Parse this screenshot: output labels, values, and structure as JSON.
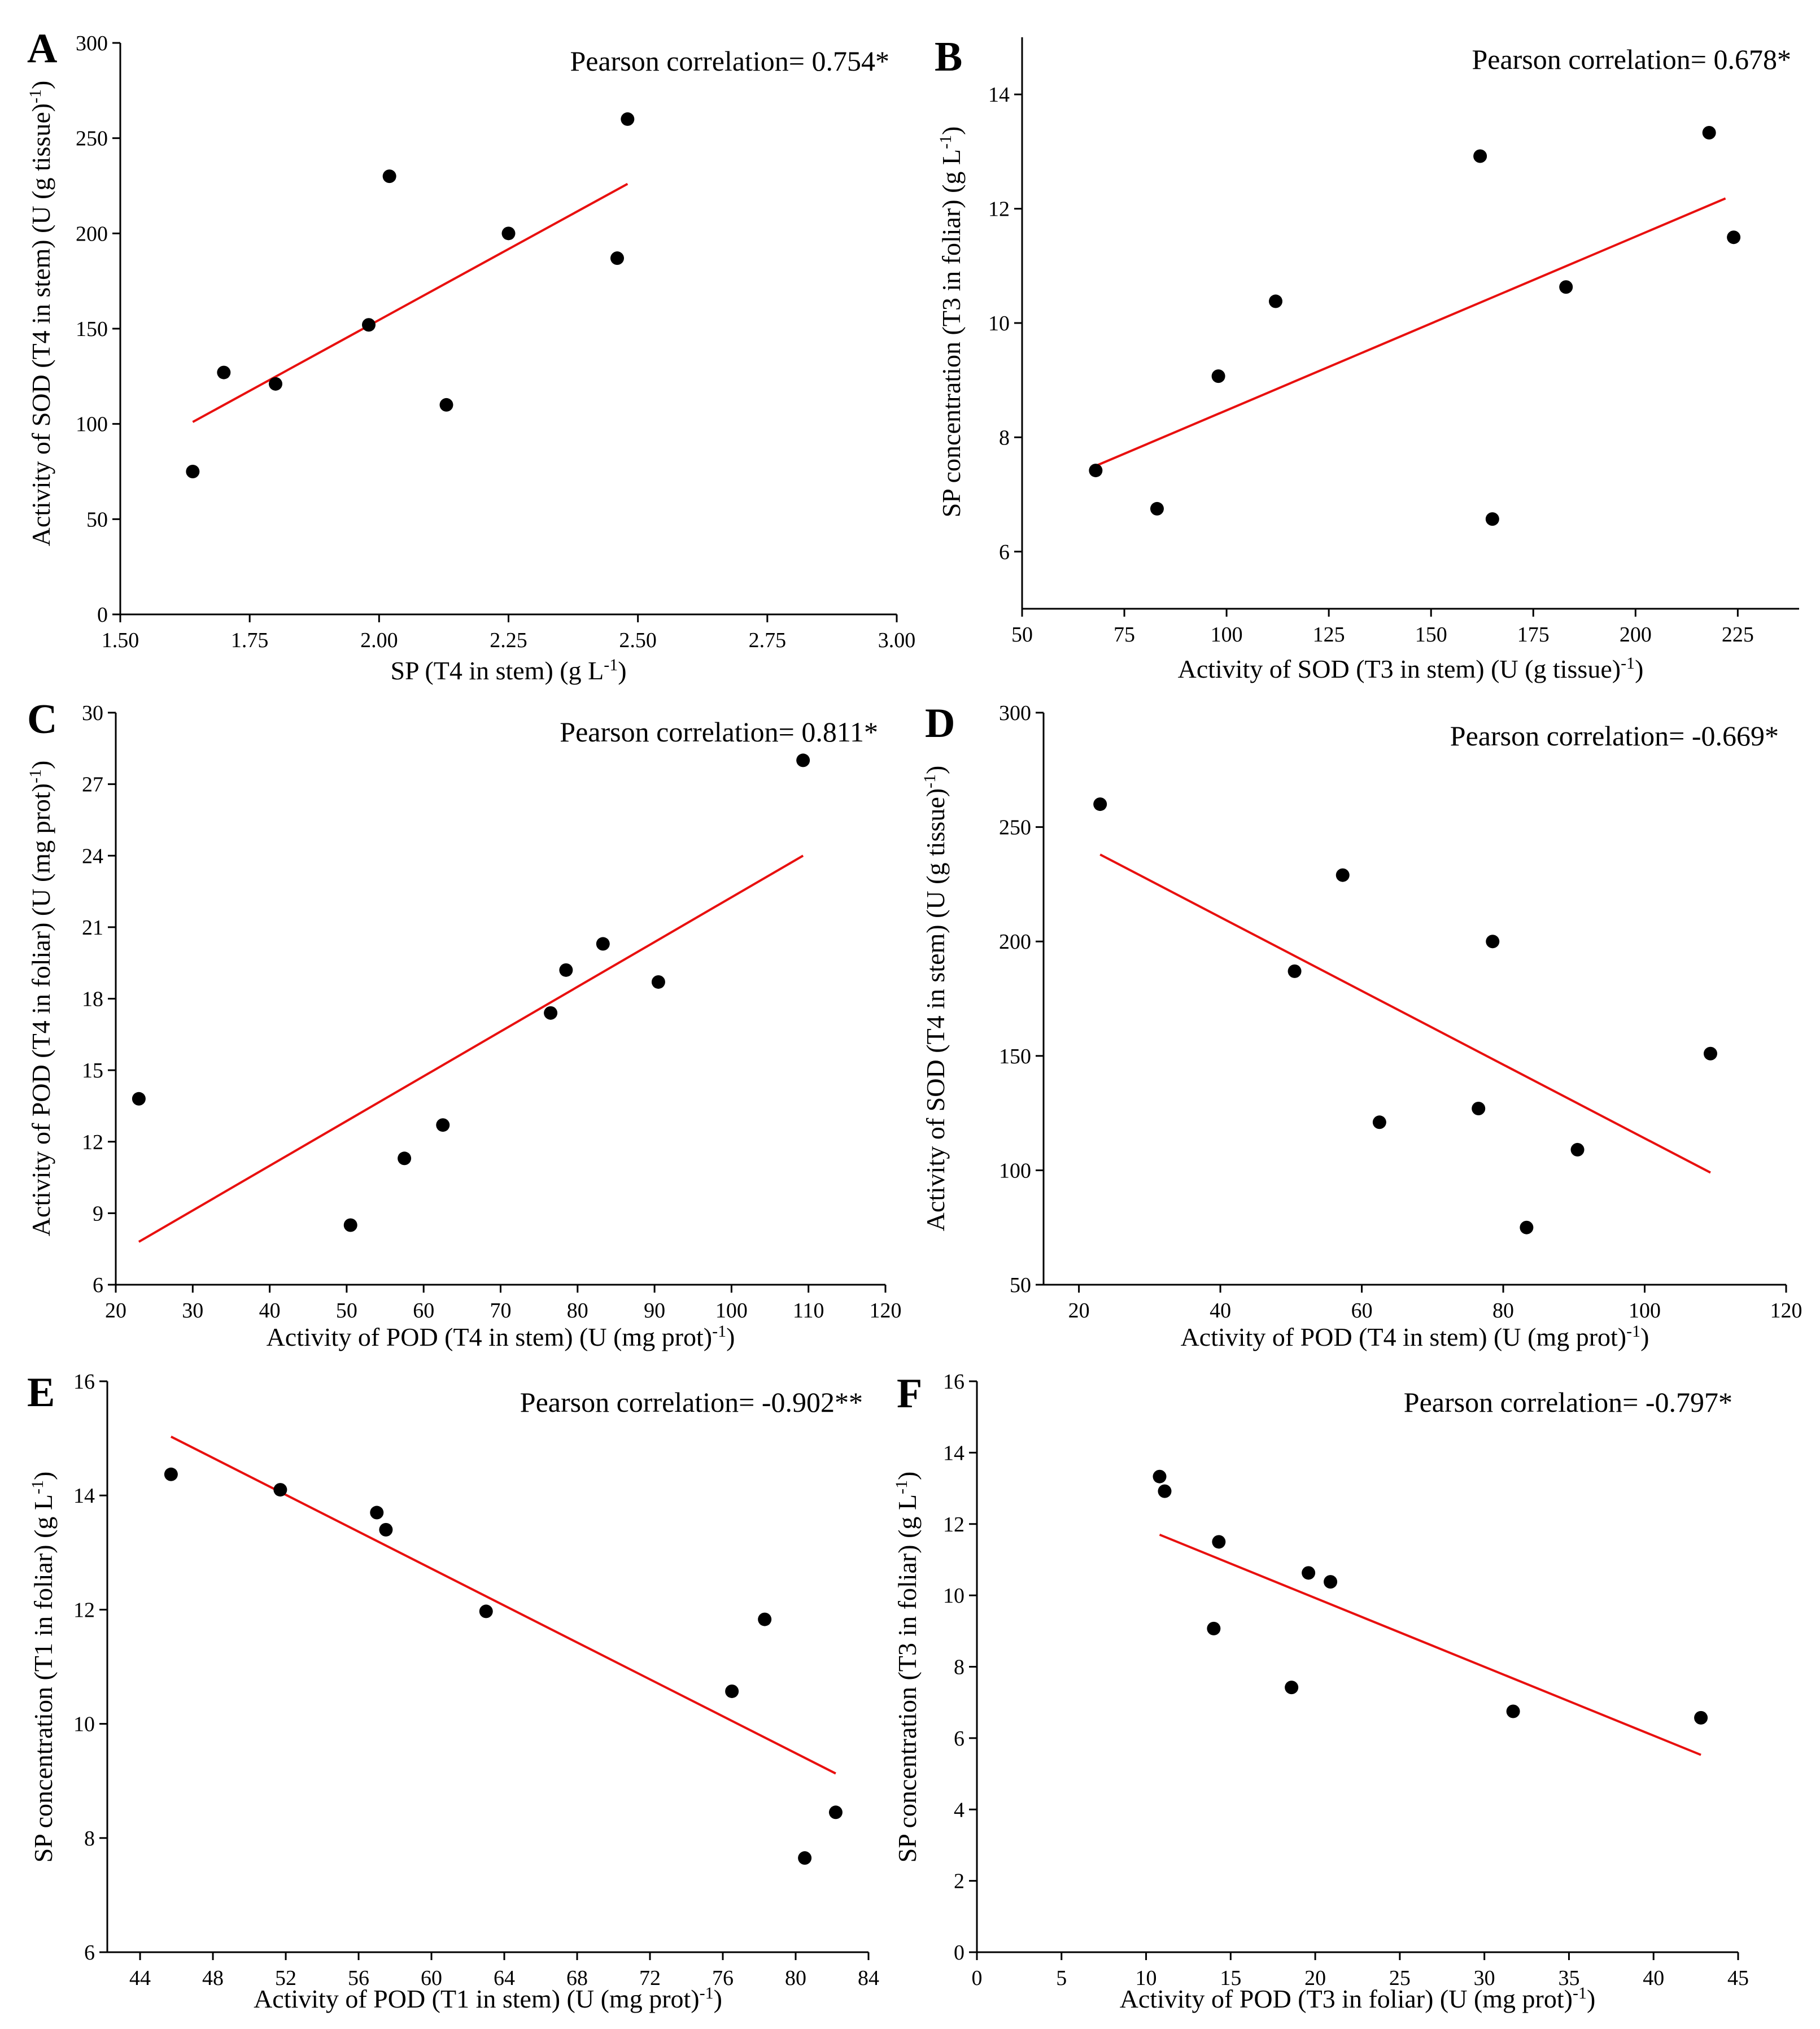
{
  "chart_data": [
    {
      "panel": "A",
      "type": "scatter",
      "annotation": "Pearson correlation= 0.754*",
      "xlabel": "SP (T4 in stem) (g L|-1|)",
      "ylabel": "Activity of SOD (T4 in stem) (U (g tissue)|-1|)",
      "xlim": [
        1.5,
        3.0
      ],
      "ylim": [
        0,
        300
      ],
      "xticks": [
        "1.50",
        "1.75",
        "2.00",
        "2.25",
        "2.50",
        "2.75",
        "3.00"
      ],
      "yticks": [
        "0",
        "50",
        "100",
        "150",
        "200",
        "250",
        "300"
      ],
      "points": [
        [
          1.64,
          75
        ],
        [
          1.7,
          127
        ],
        [
          1.8,
          121
        ],
        [
          1.98,
          152
        ],
        [
          2.02,
          230
        ],
        [
          2.13,
          110
        ],
        [
          2.25,
          200
        ],
        [
          2.46,
          187
        ],
        [
          2.48,
          260
        ]
      ],
      "fit": [
        [
          1.64,
          101
        ],
        [
          2.48,
          226
        ]
      ]
    },
    {
      "panel": "B",
      "type": "scatter",
      "annotation": "Pearson correlation= 0.678*",
      "xlabel": "Activity of SOD (T3 in stem) (U (g tissue)|-1|)",
      "ylabel": "SP concentration (T3 in foliar) (g L|-1|)",
      "xlim": [
        50,
        240
      ],
      "ylim": [
        5,
        15
      ],
      "xticks": [
        "50",
        "75",
        "100",
        "125",
        "150",
        "175",
        "200",
        "225"
      ],
      "yticks": [
        "6",
        "8",
        "10",
        "12",
        "14"
      ],
      "points": [
        [
          68,
          7.42
        ],
        [
          83,
          6.75
        ],
        [
          98,
          9.07
        ],
        [
          112,
          10.38
        ],
        [
          162,
          12.92
        ],
        [
          165,
          6.57
        ],
        [
          183,
          10.63
        ],
        [
          218,
          13.33
        ],
        [
          224,
          11.5
        ]
      ],
      "fit": [
        [
          68,
          7.5
        ],
        [
          222,
          12.18
        ]
      ]
    },
    {
      "panel": "C",
      "type": "scatter",
      "annotation": "Pearson correlation= 0.811*",
      "xlabel": "Activity of POD (T4 in stem) (U (mg prot)|-1|)",
      "ylabel": "Activity of POD (T4 in foliar) (U (mg prot)|-1|)",
      "xlim": [
        20,
        120
      ],
      "ylim": [
        6,
        30
      ],
      "xticks": [
        "20",
        "30",
        "40",
        "50",
        "60",
        "70",
        "80",
        "90",
        "100",
        "110",
        "120"
      ],
      "yticks": [
        "6",
        "9",
        "12",
        "15",
        "18",
        "21",
        "24",
        "27",
        "30"
      ],
      "points": [
        [
          23,
          13.8
        ],
        [
          50.5,
          8.5
        ],
        [
          57.5,
          11.3
        ],
        [
          62.5,
          12.7
        ],
        [
          76.5,
          17.4
        ],
        [
          78.5,
          19.2
        ],
        [
          83.3,
          20.3
        ],
        [
          90.5,
          18.7
        ],
        [
          109.3,
          28
        ]
      ],
      "fit": [
        [
          23,
          7.8
        ],
        [
          109.3,
          24
        ]
      ]
    },
    {
      "panel": "D",
      "type": "scatter",
      "annotation": "Pearson correlation= -0.669*",
      "xlabel": "Activity of POD (T4 in stem) (U (mg prot)|-1|)",
      "ylabel": "Activity of SOD (T4 in stem) (U (g tissue)|-1|)",
      "xlim": [
        15,
        120
      ],
      "ylim": [
        50,
        300
      ],
      "xticks": [
        "20",
        "40",
        "60",
        "80",
        "100",
        "120"
      ],
      "yticks": [
        "50",
        "100",
        "150",
        "200",
        "250",
        "300"
      ],
      "points": [
        [
          23,
          260
        ],
        [
          50.5,
          187
        ],
        [
          57.3,
          229
        ],
        [
          62.5,
          121
        ],
        [
          76.5,
          127
        ],
        [
          78.5,
          200
        ],
        [
          83.3,
          75
        ],
        [
          90.5,
          109
        ],
        [
          109.3,
          151
        ]
      ],
      "fit": [
        [
          23,
          238
        ],
        [
          109.3,
          99
        ]
      ]
    },
    {
      "panel": "E",
      "type": "scatter",
      "annotation": "Pearson correlation= -0.902**",
      "xlabel": "Activity of POD (T1 in stem) (U (mg prot)|-1|)",
      "ylabel": "SP concentration (T1 in foliar) (g L|-1|)",
      "xlim": [
        42.2,
        84
      ],
      "ylim": [
        6,
        16
      ],
      "xticks": [
        "44",
        "48",
        "52",
        "56",
        "60",
        "64",
        "68",
        "72",
        "76",
        "80",
        "84"
      ],
      "yticks": [
        "6",
        "8",
        "10",
        "12",
        "14",
        "16"
      ],
      "points": [
        [
          45.7,
          14.37
        ],
        [
          51.7,
          14.1
        ],
        [
          57,
          13.7
        ],
        [
          57.5,
          13.4
        ],
        [
          63,
          11.97
        ],
        [
          76.5,
          10.57
        ],
        [
          78.3,
          11.83
        ],
        [
          80.5,
          7.65
        ],
        [
          82.2,
          8.45
        ]
      ],
      "fit": [
        [
          45.7,
          15.03
        ],
        [
          82.2,
          9.13
        ]
      ]
    },
    {
      "panel": "F",
      "type": "scatter",
      "annotation": "Pearson correlation= -0.797*",
      "xlabel": "Activity of POD (T3 in foliar) (U (mg prot)|-1|)",
      "ylabel": "SP concentration (T3 in foliar) (g L|-1|)",
      "xlim": [
        0,
        45
      ],
      "ylim": [
        0,
        16
      ],
      "xticks": [
        "0",
        "5",
        "10",
        "15",
        "20",
        "25",
        "30",
        "35",
        "40",
        "45"
      ],
      "yticks": [
        "0",
        "2",
        "4",
        "6",
        "8",
        "10",
        "12",
        "14",
        "16"
      ],
      "points": [
        [
          10.8,
          13.33
        ],
        [
          11.1,
          12.92
        ],
        [
          14,
          9.07
        ],
        [
          14.3,
          11.5
        ],
        [
          18.6,
          7.42
        ],
        [
          19.6,
          10.63
        ],
        [
          20.9,
          10.38
        ],
        [
          31.7,
          6.75
        ],
        [
          42.8,
          6.57
        ]
      ],
      "fit": [
        [
          10.8,
          11.7
        ],
        [
          42.8,
          5.53
        ]
      ]
    }
  ]
}
